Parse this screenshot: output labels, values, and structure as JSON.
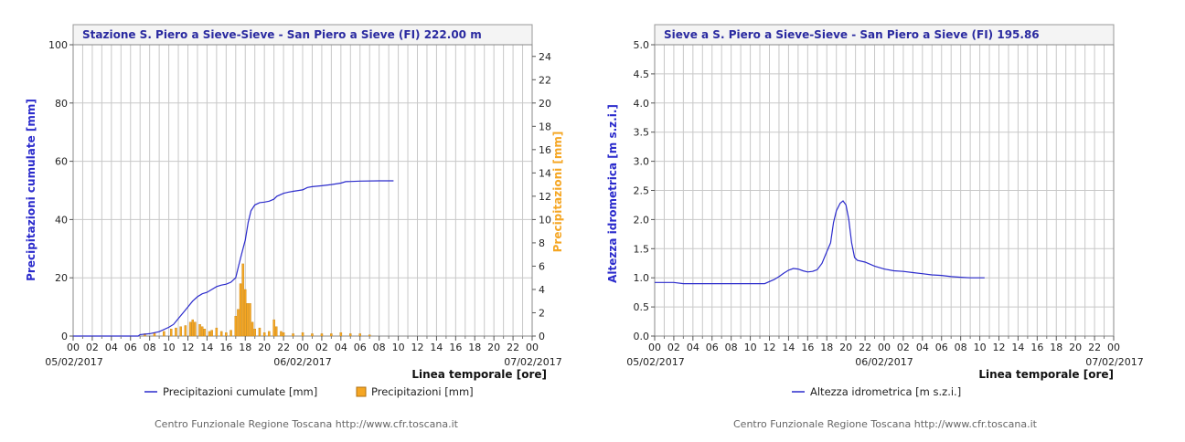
{
  "chart_data": [
    {
      "type": "line",
      "title": "Stazione S. Piero a Sieve-Sieve - San Piero a Sieve (FI) 222.00 m",
      "xlabel": "Linea temporale [ore]",
      "ylabel": "Precipitazioni cumulate [mm]",
      "ylabel_right": "Precipitazioni [mm]",
      "ylim": [
        0,
        100
      ],
      "ylim_right": [
        0,
        25
      ],
      "yticks": [
        "0",
        "20",
        "40",
        "60",
        "80",
        "100"
      ],
      "yticks_right": [
        "0",
        "2",
        "4",
        "6",
        "8",
        "10",
        "12",
        "14",
        "16",
        "18",
        "20",
        "22",
        "24"
      ],
      "xticks": [
        "00",
        "02",
        "04",
        "06",
        "08",
        "10",
        "12",
        "14",
        "16",
        "18",
        "20",
        "22",
        "00",
        "02",
        "04",
        "06",
        "08",
        "10",
        "12",
        "14",
        "16",
        "18",
        "20",
        "22",
        "00"
      ],
      "date_labels": [
        "05/02/2017",
        "06/02/2017",
        "07/02/2017"
      ],
      "x_unit": "hours from 05/02/2017 00:00",
      "series": [
        {
          "name": "Precipitazioni cumulate [mm]",
          "color": "#2b2bcc",
          "points": [
            [
              0,
              0
            ],
            [
              6.8,
              0
            ],
            [
              7,
              0.5
            ],
            [
              8,
              0.8
            ],
            [
              9,
              1.5
            ],
            [
              10,
              3
            ],
            [
              10.5,
              4
            ],
            [
              11,
              6
            ],
            [
              11.5,
              8
            ],
            [
              12,
              10
            ],
            [
              12.5,
              12
            ],
            [
              13,
              13.5
            ],
            [
              13.5,
              14.5
            ],
            [
              14,
              15
            ],
            [
              14.5,
              16
            ],
            [
              15,
              17
            ],
            [
              15.5,
              17.5
            ],
            [
              16,
              17.8
            ],
            [
              16.5,
              18.5
            ],
            [
              17,
              20
            ],
            [
              17.3,
              24
            ],
            [
              17.6,
              28
            ],
            [
              18,
              33
            ],
            [
              18.3,
              39
            ],
            [
              18.6,
              43
            ],
            [
              19,
              45
            ],
            [
              19.5,
              45.8
            ],
            [
              20,
              46
            ],
            [
              20.5,
              46.3
            ],
            [
              21,
              47
            ],
            [
              21.3,
              48
            ],
            [
              22,
              49
            ],
            [
              22.5,
              49.4
            ],
            [
              23,
              49.7
            ],
            [
              24,
              50.2
            ],
            [
              24.5,
              51
            ],
            [
              25,
              51.3
            ],
            [
              26,
              51.6
            ],
            [
              27,
              52
            ],
            [
              28,
              52.5
            ],
            [
              28.5,
              53
            ],
            [
              30,
              53.2
            ],
            [
              32,
              53.3
            ],
            [
              33.5,
              53.3
            ]
          ]
        },
        {
          "name": "Precipitazioni [mm]",
          "color": "#f5a623",
          "type": "bar",
          "axis": "right",
          "bars": [
            [
              7.5,
              0.2
            ],
            [
              8.5,
              0.3
            ],
            [
              9.5,
              0.4
            ],
            [
              10.25,
              0.6
            ],
            [
              10.75,
              0.7
            ],
            [
              11.25,
              0.8
            ],
            [
              11.75,
              0.9
            ],
            [
              12.25,
              1.2
            ],
            [
              12.5,
              1.4
            ],
            [
              12.75,
              1.2
            ],
            [
              13.25,
              1.0
            ],
            [
              13.5,
              0.8
            ],
            [
              13.75,
              0.6
            ],
            [
              14.25,
              0.4
            ],
            [
              14.5,
              0.5
            ],
            [
              15,
              0.7
            ],
            [
              15.5,
              0.4
            ],
            [
              16,
              0.3
            ],
            [
              16.5,
              0.5
            ],
            [
              17,
              1.7
            ],
            [
              17.25,
              2.3
            ],
            [
              17.5,
              4.5
            ],
            [
              17.75,
              6.2
            ],
            [
              18,
              4
            ],
            [
              18.25,
              2.8
            ],
            [
              18.5,
              2.8
            ],
            [
              18.75,
              1.2
            ],
            [
              19,
              0.6
            ],
            [
              19.5,
              0.7
            ],
            [
              20,
              0.3
            ],
            [
              20.5,
              0.4
            ],
            [
              21,
              1.4
            ],
            [
              21.25,
              0.8
            ],
            [
              21.75,
              0.4
            ],
            [
              22,
              0.3
            ],
            [
              23,
              0.2
            ],
            [
              24,
              0.3
            ],
            [
              25,
              0.2
            ],
            [
              26,
              0.2
            ],
            [
              27,
              0.2
            ],
            [
              28,
              0.3
            ],
            [
              29,
              0.2
            ],
            [
              30,
              0.2
            ],
            [
              31,
              0.1
            ]
          ]
        }
      ],
      "legend": [
        "Precipitazioni cumulate [mm]",
        "Precipitazioni [mm]"
      ],
      "legend_position": "bottom"
    },
    {
      "type": "line",
      "title": "Sieve a S. Piero a Sieve-Sieve - San Piero a Sieve (FI) 195.86",
      "xlabel": "Linea temporale [ore]",
      "ylabel": "Altezza idrometrica [m s.z.i.]",
      "ylim": [
        0,
        5
      ],
      "yticks": [
        "0.0",
        "0.5",
        "1.0",
        "1.5",
        "2.0",
        "2.5",
        "3.0",
        "3.5",
        "4.0",
        "4.5",
        "5.0"
      ],
      "xticks": [
        "00",
        "02",
        "04",
        "06",
        "08",
        "10",
        "12",
        "14",
        "16",
        "18",
        "20",
        "22",
        "00",
        "02",
        "04",
        "06",
        "08",
        "10",
        "12",
        "14",
        "16",
        "18",
        "20",
        "22",
        "00"
      ],
      "date_labels": [
        "05/02/2017",
        "06/02/2017",
        "07/02/2017"
      ],
      "x_unit": "hours from 05/02/2017 00:00",
      "series": [
        {
          "name": "Altezza idrometrica [m s.z.i.]",
          "color": "#2b2bcc",
          "points": [
            [
              0,
              0.92
            ],
            [
              2,
              0.92
            ],
            [
              3,
              0.9
            ],
            [
              6,
              0.9
            ],
            [
              10,
              0.9
            ],
            [
              11.5,
              0.9
            ],
            [
              12.5,
              0.97
            ],
            [
              13,
              1.02
            ],
            [
              13.5,
              1.08
            ],
            [
              14,
              1.13
            ],
            [
              14.5,
              1.16
            ],
            [
              15,
              1.15
            ],
            [
              15.5,
              1.12
            ],
            [
              16,
              1.1
            ],
            [
              16.5,
              1.11
            ],
            [
              17,
              1.14
            ],
            [
              17.5,
              1.25
            ],
            [
              18,
              1.45
            ],
            [
              18.4,
              1.6
            ],
            [
              18.7,
              1.95
            ],
            [
              19,
              2.15
            ],
            [
              19.4,
              2.28
            ],
            [
              19.7,
              2.32
            ],
            [
              20,
              2.25
            ],
            [
              20.3,
              2.0
            ],
            [
              20.6,
              1.6
            ],
            [
              20.9,
              1.35
            ],
            [
              21.2,
              1.3
            ],
            [
              22,
              1.27
            ],
            [
              23,
              1.2
            ],
            [
              24,
              1.15
            ],
            [
              25,
              1.12
            ],
            [
              26,
              1.11
            ],
            [
              27,
              1.09
            ],
            [
              28,
              1.07
            ],
            [
              29,
              1.05
            ],
            [
              30,
              1.04
            ],
            [
              31,
              1.02
            ],
            [
              32,
              1.01
            ],
            [
              33,
              1.0
            ],
            [
              34.5,
              1.0
            ]
          ]
        }
      ],
      "legend": [
        "Altezza idrometrica [m s.z.i.]"
      ],
      "legend_position": "bottom"
    }
  ],
  "footer": "Centro Funzionale Regione Toscana http://www.cfr.toscana.it"
}
